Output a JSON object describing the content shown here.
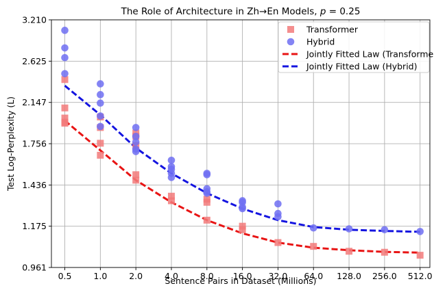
{
  "chart_data": {
    "type": "scatter",
    "title": "The Role of Architecture in Zh→En Models, p̂ = 0.25",
    "title_parts": {
      "prefix": "The Role of Architecture in Zh",
      "arrow": "→",
      "mid": "En Models, ",
      "p": "p",
      "hat": "^",
      "suffix": " = 0.25"
    },
    "xlabel": "Sentence Pairs in Dataset (Millions)",
    "ylabel": "Test Log-Perplexity (L)",
    "x_scale": "log2",
    "y_scale": "log",
    "xlim": [
      0.385,
      620
    ],
    "ylim": [
      0.961,
      3.21
    ],
    "x_ticks": [
      0.5,
      1.0,
      2.0,
      4.0,
      8.0,
      16.0,
      32.0,
      64.0,
      128.0,
      256.0,
      512.0
    ],
    "x_tick_labels": [
      "0.5",
      "1.0",
      "2.0",
      "4.0",
      "8.0",
      "16.0",
      "32.0",
      "64.0",
      "128.0",
      "256.0",
      "512.0"
    ],
    "y_ticks": [
      0.961,
      1.175,
      1.436,
      1.756,
      2.147,
      2.625,
      3.21
    ],
    "y_tick_labels": [
      "0.961",
      "1.175",
      "1.436",
      "1.756",
      "2.147",
      "2.625",
      "3.210"
    ],
    "grid": true,
    "legend_position": "top-right",
    "series": [
      {
        "name": "Transformer",
        "kind": "scatter",
        "marker": "square",
        "color": "#f27a7a",
        "points": [
          [
            0.5,
            2.4
          ],
          [
            0.5,
            2.09
          ],
          [
            0.5,
            1.99
          ],
          [
            0.5,
            1.95
          ],
          [
            0.5,
            1.94
          ],
          [
            1.0,
            2.0
          ],
          [
            1.0,
            1.9
          ],
          [
            1.0,
            1.76
          ],
          [
            1.0,
            1.66
          ],
          [
            2.0,
            1.85
          ],
          [
            2.0,
            1.82
          ],
          [
            2.0,
            1.74
          ],
          [
            2.0,
            1.51
          ],
          [
            2.0,
            1.47
          ],
          [
            4.0,
            1.36
          ],
          [
            4.0,
            1.33
          ],
          [
            8.0,
            1.34
          ],
          [
            8.0,
            1.32
          ],
          [
            8.0,
            1.21
          ],
          [
            16.0,
            1.175
          ],
          [
            16.0,
            1.155
          ],
          [
            32.0,
            1.085
          ],
          [
            64.0,
            1.065
          ],
          [
            128.0,
            1.04
          ],
          [
            256.0,
            1.035
          ],
          [
            512.0,
            1.02
          ]
        ]
      },
      {
        "name": "Hybrid",
        "kind": "scatter",
        "marker": "circle",
        "color": "#6e6ef2",
        "points": [
          [
            0.5,
            3.05
          ],
          [
            0.5,
            2.8
          ],
          [
            0.5,
            2.67
          ],
          [
            0.5,
            2.47
          ],
          [
            1.0,
            2.35
          ],
          [
            1.0,
            2.23
          ],
          [
            1.0,
            2.14
          ],
          [
            1.0,
            2.01
          ],
          [
            1.0,
            1.91
          ],
          [
            2.0,
            1.9
          ],
          [
            2.0,
            1.82
          ],
          [
            2.0,
            1.77
          ],
          [
            2.0,
            1.71
          ],
          [
            2.0,
            1.69
          ],
          [
            4.0,
            1.62
          ],
          [
            4.0,
            1.57
          ],
          [
            4.0,
            1.55
          ],
          [
            4.0,
            1.52
          ],
          [
            4.0,
            1.49
          ],
          [
            8.0,
            1.52
          ],
          [
            8.0,
            1.51
          ],
          [
            8.0,
            1.41
          ],
          [
            8.0,
            1.39
          ],
          [
            8.0,
            1.38
          ],
          [
            16.0,
            1.33
          ],
          [
            16.0,
            1.32
          ],
          [
            16.0,
            1.29
          ],
          [
            16.0,
            1.28
          ],
          [
            32.0,
            1.31
          ],
          [
            32.0,
            1.25
          ],
          [
            32.0,
            1.23
          ],
          [
            64.0,
            1.165
          ],
          [
            128.0,
            1.16
          ],
          [
            256.0,
            1.155
          ],
          [
            512.0,
            1.145
          ]
        ]
      },
      {
        "name": "Jointly Fitted Law (Transformer)",
        "kind": "line",
        "style": "dashed",
        "color": "#e81414",
        "points": [
          [
            0.5,
            1.965
          ],
          [
            1.0,
            1.7
          ],
          [
            2.0,
            1.47
          ],
          [
            4.0,
            1.32
          ],
          [
            8.0,
            1.21
          ],
          [
            16.0,
            1.135
          ],
          [
            32.0,
            1.085
          ],
          [
            64.0,
            1.058
          ],
          [
            128.0,
            1.045
          ],
          [
            256.0,
            1.037
          ],
          [
            512.0,
            1.033
          ]
        ]
      },
      {
        "name": "Jointly Fitted Law (Hybrid)",
        "kind": "line",
        "style": "dashed",
        "color": "#1414e0",
        "points": [
          [
            0.5,
            2.33
          ],
          [
            1.0,
            2.02
          ],
          [
            2.0,
            1.72
          ],
          [
            4.0,
            1.52
          ],
          [
            8.0,
            1.38
          ],
          [
            16.0,
            1.28
          ],
          [
            32.0,
            1.21
          ],
          [
            64.0,
            1.17
          ],
          [
            128.0,
            1.155
          ],
          [
            256.0,
            1.148
          ],
          [
            512.0,
            1.143
          ]
        ]
      }
    ]
  }
}
